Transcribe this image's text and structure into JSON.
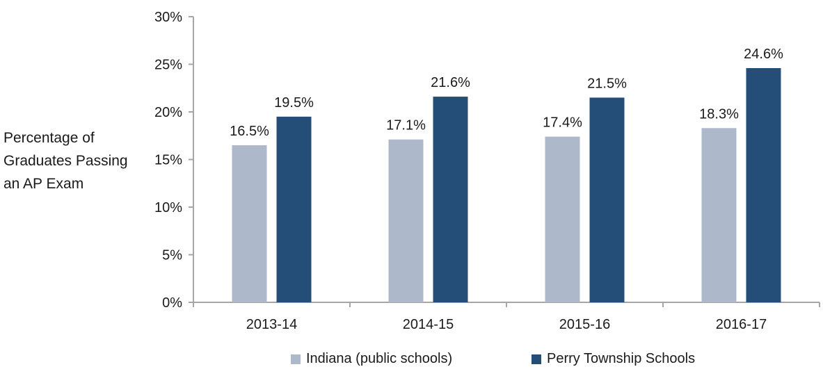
{
  "chart_data": {
    "type": "bar",
    "title": "",
    "ylabel_lines": [
      "Percentage of",
      "Graduates Passing",
      "an AP Exam"
    ],
    "xlabel": "",
    "categories": [
      "2013-14",
      "2014-15",
      "2015-16",
      "2016-17"
    ],
    "series": [
      {
        "name": "Indiana (public schools)",
        "values": [
          16.5,
          17.1,
          17.4,
          18.3
        ],
        "color": "#adb9ca",
        "labels": [
          "16.5%",
          "17.1%",
          "17.4%",
          "18.3%"
        ]
      },
      {
        "name": "Perry Township Schools",
        "values": [
          19.5,
          21.6,
          21.5,
          24.6
        ],
        "color": "#244e78",
        "labels": [
          "19.5%",
          "21.6%",
          "21.5%",
          "24.6%"
        ]
      }
    ],
    "ylim": [
      0,
      30
    ],
    "yticks": [
      0,
      5,
      10,
      15,
      20,
      25,
      30
    ],
    "ytick_labels": [
      "0%",
      "5%",
      "10%",
      "15%",
      "20%",
      "25%",
      "30%"
    ],
    "grid": false,
    "legend_position": "bottom"
  }
}
